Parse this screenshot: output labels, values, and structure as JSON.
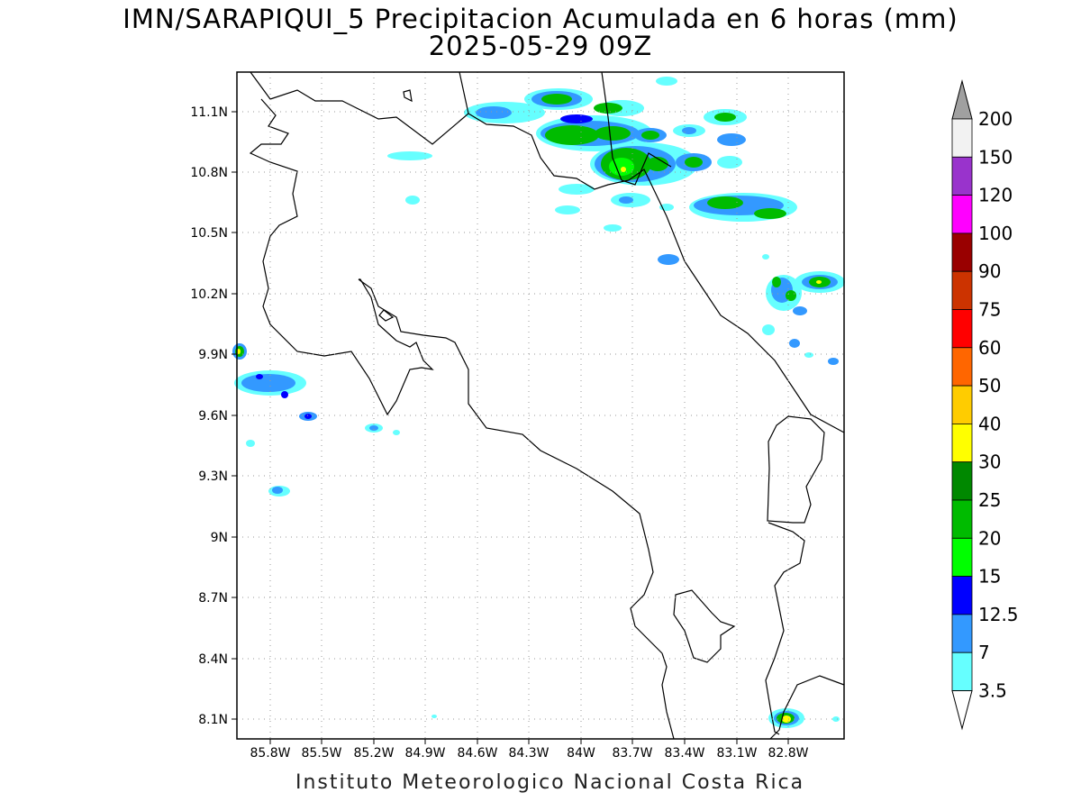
{
  "title": {
    "line1": "IMN/SARAPIQUI_5 Precipitacion Acumulada en 6 horas (mm)",
    "line2": "2025-05-29 09Z"
  },
  "footer": "Instituto Meteorologico Nacional Costa Rica",
  "map": {
    "lon_range": [
      86.0,
      82.6
    ],
    "lat_range": [
      8.0,
      11.3
    ],
    "lon_ticks": [
      "85.8W",
      "85.5W",
      "85.2W",
      "84.9W",
      "84.6W",
      "84.3W",
      "84W",
      "83.7W",
      "83.4W",
      "83.1W",
      "82.8W"
    ],
    "lat_ticks": [
      "11.1N",
      "10.8N",
      "10.5N",
      "10.2N",
      "9.9N",
      "9.6N",
      "9.3N",
      "9N",
      "8.7N",
      "8.4N",
      "8.1N"
    ]
  },
  "colorbar": {
    "labels": [
      "200",
      "150",
      "120",
      "100",
      "90",
      "75",
      "60",
      "50",
      "40",
      "30",
      "25",
      "20",
      "15",
      "12.5",
      "7",
      "3.5"
    ],
    "colors": [
      "#f2f2f2",
      "#9933cc",
      "#ff00ff",
      "#990000",
      "#cc3300",
      "#ff0000",
      "#ff6600",
      "#ffcc00",
      "#ffff00",
      "#008800",
      "#00bb00",
      "#00ff00",
      "#0000ff",
      "#3399ff",
      "#66ffff"
    ],
    "top_arrow_color": "#a0a0a0"
  }
}
